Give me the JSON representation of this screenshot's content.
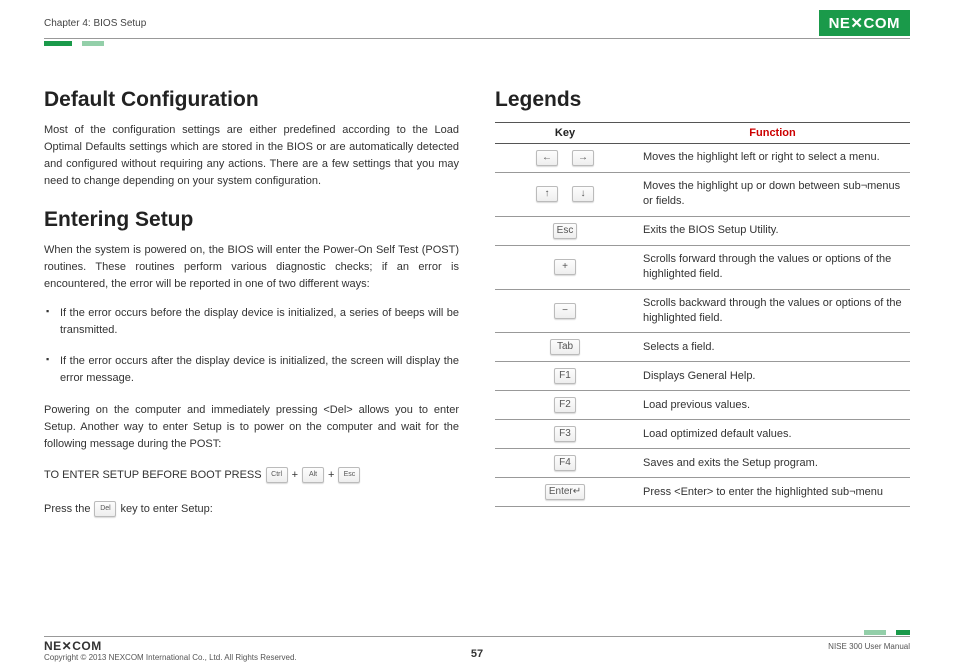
{
  "header": {
    "chapter": "Chapter 4: BIOS Setup",
    "logo_text": "NE✕COM"
  },
  "left": {
    "h1": "Default Configuration",
    "p1": "Most of the configuration settings are either predefined according to the Load Optimal Defaults settings which are stored in the BIOS or are automatically detected and configured without requiring any actions. There are a few settings that you may need to change depending on your system configuration.",
    "h2": "Entering Setup",
    "p2": "When the system is powered on, the BIOS will enter the Power-On Self Test (POST) routines. These routines perform various diagnostic checks; if an error is encountered, the error will be reported in one of two different ways:",
    "li1": "If the error occurs before the display device is initialized, a series of beeps will be transmitted.",
    "li2": "If the error occurs after the display device is initialized, the screen will display the error message.",
    "p3": "Powering on the computer and immediately pressing <Del> allows you to enter Setup. Another way to enter Setup is to power on the computer and wait for the following message during the POST:",
    "setup_prefix": "TO ENTER SETUP BEFORE BOOT PRESS",
    "keys": {
      "ctrl": "Ctrl",
      "alt": "Alt",
      "esc": "Esc",
      "plus": "+",
      "del": "Del"
    },
    "press_prefix": "Press the",
    "press_suffix": "key to enter Setup:"
  },
  "right": {
    "h": "Legends",
    "th_key": "Key",
    "th_fn": "Function",
    "rows": [
      {
        "keys": [
          "←",
          "→"
        ],
        "fn": "Moves the highlight left or right to select a menu."
      },
      {
        "keys": [
          "↑",
          "↓"
        ],
        "fn": "Moves the highlight up or down between sub¬menus or fields."
      },
      {
        "keys": [
          "Esc"
        ],
        "fn": "Exits the BIOS Setup Utility."
      },
      {
        "keys": [
          "+"
        ],
        "fn": "Scrolls forward through the values or options of the highlighted field."
      },
      {
        "keys": [
          "−"
        ],
        "fn": "Scrolls backward through the values or options of the highlighted field."
      },
      {
        "keys": [
          "Tab"
        ],
        "wide": true,
        "fn": "Selects a field."
      },
      {
        "keys": [
          "F1"
        ],
        "fn": "Displays General Help."
      },
      {
        "keys": [
          "F2"
        ],
        "fn": "Load previous values."
      },
      {
        "keys": [
          "F3"
        ],
        "fn": "Load optimized default values."
      },
      {
        "keys": [
          "F4"
        ],
        "fn": "Saves and exits the Setup program."
      },
      {
        "keys": [
          "Enter↵"
        ],
        "wide": true,
        "fn": "Press <Enter> to enter the highlighted sub¬menu"
      }
    ]
  },
  "footer": {
    "logo": "NE✕COM",
    "copyright": "Copyright © 2013 NEXCOM International Co., Ltd. All Rights Reserved.",
    "page": "57",
    "manual": "NISE 300 User Manual"
  }
}
